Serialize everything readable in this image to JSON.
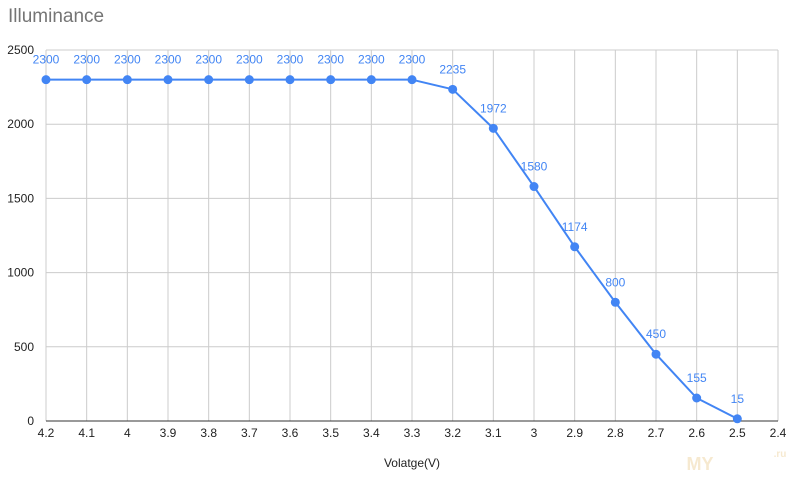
{
  "title": "Illuminance",
  "chart_data": {
    "type": "line",
    "title": "Illuminance",
    "xlabel": "Volatge(V)",
    "ylabel": "",
    "x": [
      "4.2",
      "4.1",
      "4",
      "3.9",
      "3.8",
      "3.7",
      "3.6",
      "3.5",
      "3.4",
      "3.3",
      "3.2",
      "3.1",
      "3",
      "2.9",
      "2.8",
      "2.7",
      "2.6",
      "2.5",
      "2.4"
    ],
    "values": [
      2300,
      2300,
      2300,
      2300,
      2300,
      2300,
      2300,
      2300,
      2300,
      2300,
      2235,
      1972,
      1580,
      1174,
      800,
      450,
      155,
      15,
      null
    ],
    "data_labels": [
      "2300",
      "2300",
      "2300",
      "2300",
      "2300",
      "2300",
      "2300",
      "2300",
      "2300",
      "2300",
      "2235",
      "1972",
      "1580",
      "1174",
      "800",
      "450",
      "155",
      "15",
      ""
    ],
    "ylim": [
      0,
      2500
    ],
    "yticks": [
      "0",
      "500",
      "1000",
      "1500",
      "2000",
      "2500"
    ],
    "grid": true,
    "line_color": "#4285f4",
    "label_color": "#4285f4",
    "grid_color": "#cccccc"
  },
  "watermark": {
    "text": "MY",
    "suffix": ".ru"
  }
}
